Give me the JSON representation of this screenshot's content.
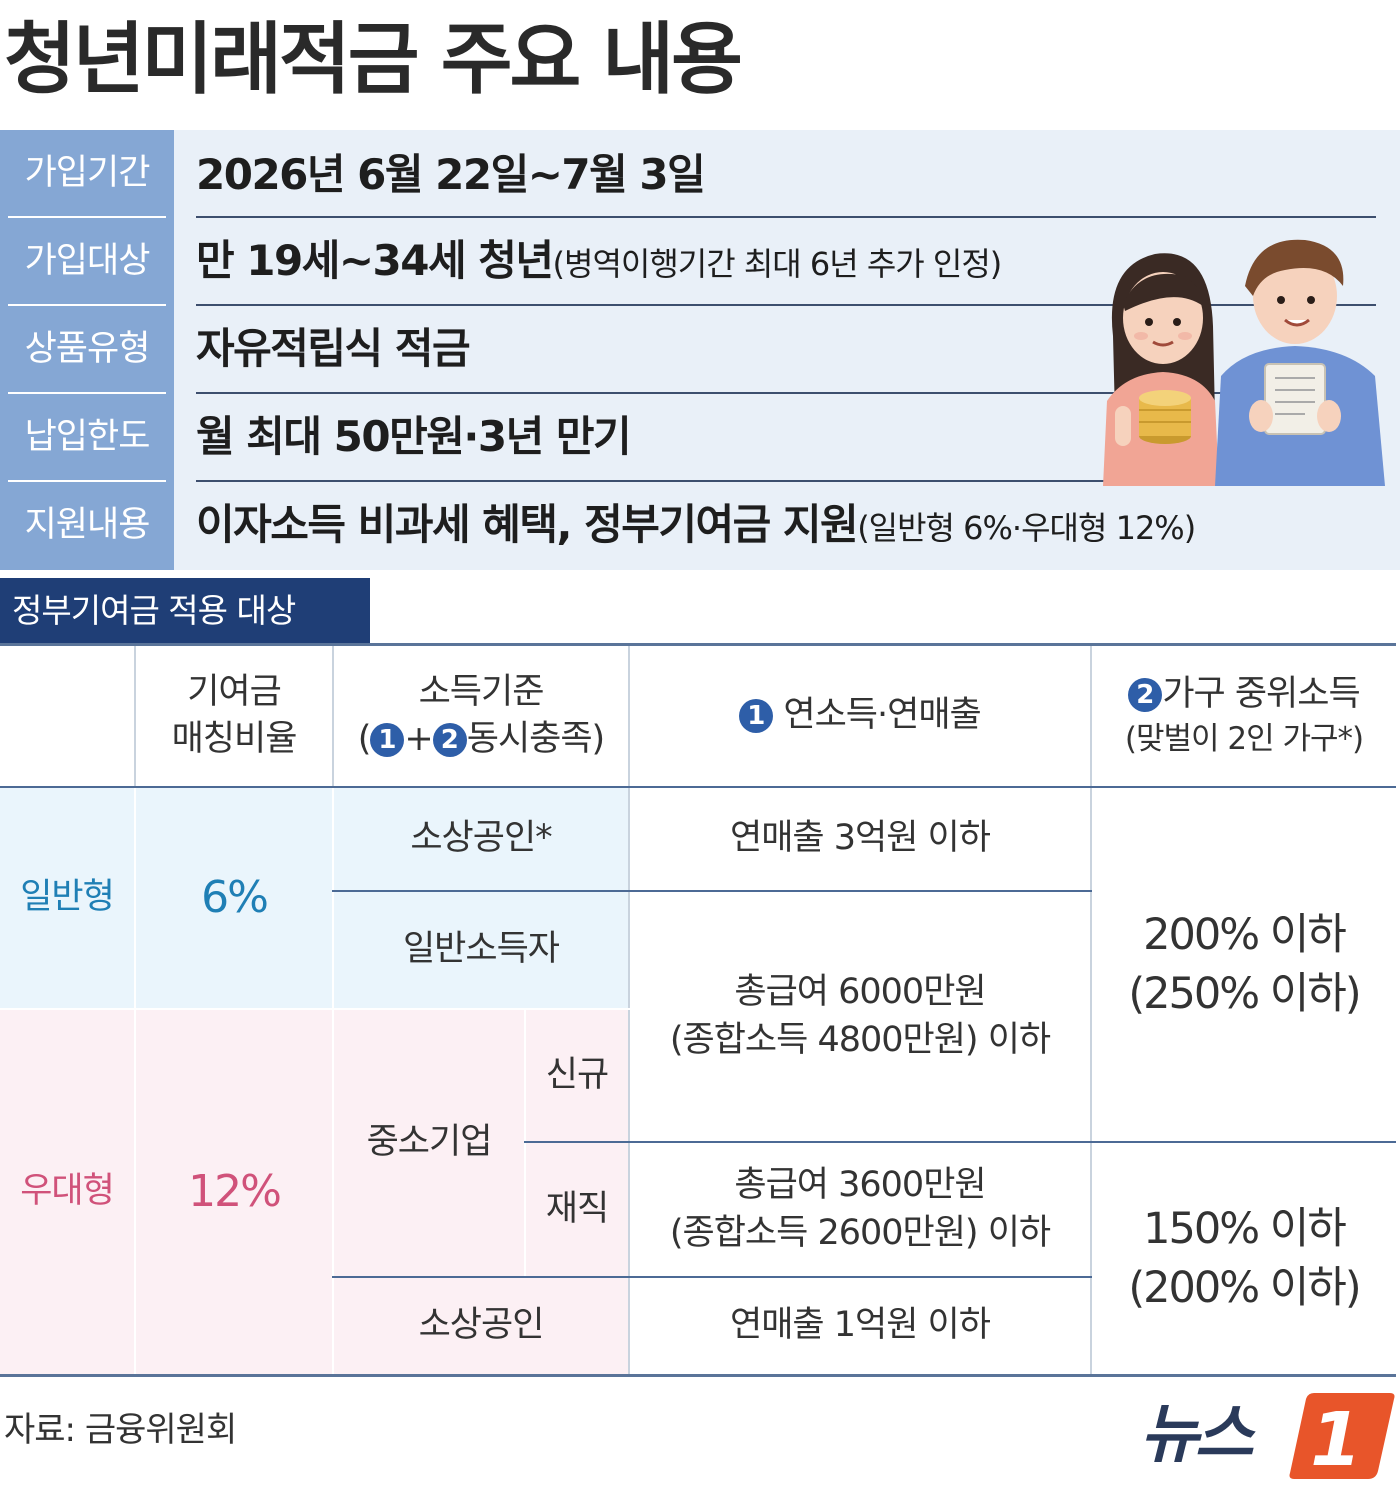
{
  "title": "청년미래적금 주요 내용",
  "info": [
    {
      "label": "가입기간",
      "value": "2026년 6월 22일~7월 3일",
      "note": ""
    },
    {
      "label": "가입대상",
      "value": "만 19세~34세 청년",
      "note": "(병역이행기간 최대 6년 추가 인정)"
    },
    {
      "label": "상품유형",
      "value": "자유적립식 적금",
      "note": ""
    },
    {
      "label": "납입한도",
      "value": "월 최대 50만원·3년 만기",
      "note": ""
    },
    {
      "label": "지원내용",
      "value": "이자소득 비과세 혜택, 정부기여금 지원",
      "note": "(일반형 6%·우대형 12%)"
    }
  ],
  "section_title": "정부기여금 적용 대상",
  "table": {
    "headers": {
      "ratio_line1": "기여금",
      "ratio_line2": "매칭비율",
      "criteria_line1": "소득기준",
      "criteria_open": "(",
      "criteria_n1": "1",
      "criteria_plus": "+",
      "criteria_n2": "2",
      "criteria_rest": "동시충족)",
      "income_n": "1",
      "income_label": "연소득·연매출",
      "median_n": "2",
      "median_line1": "가구 중위소득",
      "median_line2": "(맞벌이 2인 가구*)"
    },
    "general": {
      "type": "일반형",
      "rate": "6%",
      "rows": [
        {
          "criteria": "소상공인*",
          "income": "연매출 3억원 이하"
        },
        {
          "criteria": "일반소득자"
        }
      ]
    },
    "preferred": {
      "type": "우대형",
      "rate": "12%",
      "sme": "중소기업",
      "sme_new": "신규",
      "sme_current": "재직",
      "small_biz": "소상공인",
      "small_biz_income": "연매출 1억원 이하"
    },
    "income_general_line1": "총급여 6000만원",
    "income_general_line2": "(종합소득 4800만원) 이하",
    "income_pref_line1": "총급여 3600만원",
    "income_pref_line2": "(종합소득 2600만원) 이하",
    "median_general_line1": "200% 이하",
    "median_general_line2": "(250% 이하)",
    "median_pref_line1": "150% 이하",
    "median_pref_line2": "(200% 이하)"
  },
  "source": "자료: 금융위원회",
  "logo": {
    "text": "뉴스",
    "mark": "1"
  },
  "colors": {
    "label_bg": "#85a7d4",
    "info_bg": "#e9f0f8",
    "tab_bg": "#1f3e76",
    "general": "#1f7fb5",
    "preferred": "#d0527a",
    "logo_orange": "#e8552a"
  }
}
